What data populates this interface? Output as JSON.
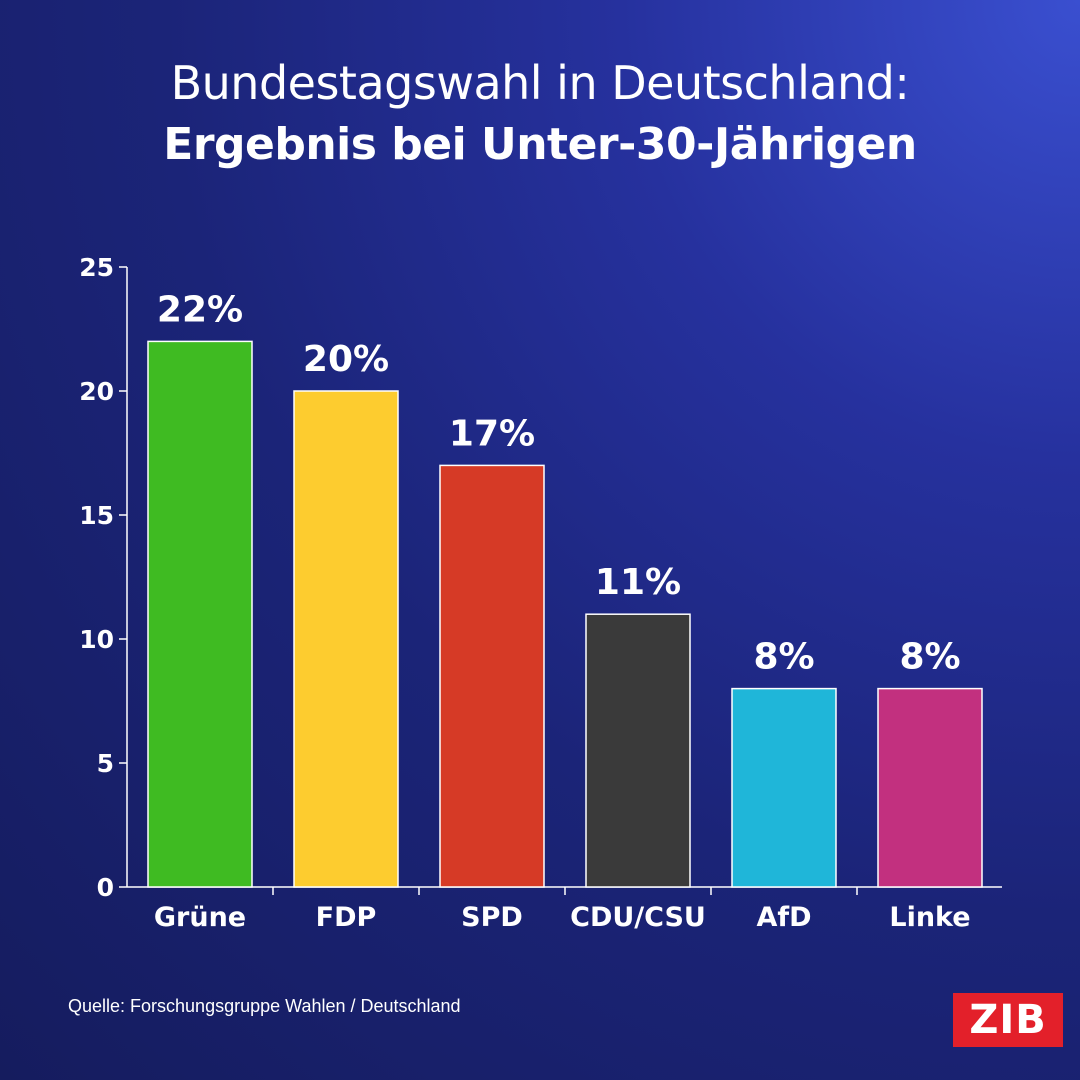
{
  "title": {
    "line1": "Bundestagswahl in Deutschland:",
    "line2": "Ergebnis bei Unter-30-Jährigen"
  },
  "chart_data": {
    "type": "bar",
    "categories": [
      "Grüne",
      "FDP",
      "SPD",
      "CDU/CSU",
      "AfD",
      "Linke"
    ],
    "values": [
      22,
      20,
      17,
      11,
      8,
      8
    ],
    "data_labels": [
      "22%",
      "20%",
      "17%",
      "11%",
      "8%",
      "8%"
    ],
    "colors": [
      "#3fbb22",
      "#fdcc2f",
      "#d63a26",
      "#3a3a3a",
      "#1fb6d9",
      "#c2307f"
    ],
    "ylim": [
      0,
      25
    ],
    "yticks": [
      0,
      5,
      10,
      15,
      20,
      25
    ],
    "ytick_labels": [
      "0",
      "5",
      "10",
      "15",
      "20",
      "25"
    ],
    "grid": false,
    "legend": "none"
  },
  "source": "Quelle: Forschungsgruppe Wahlen / Deutschland",
  "logo": {
    "text": "ZIB",
    "color": "#e3202a"
  }
}
